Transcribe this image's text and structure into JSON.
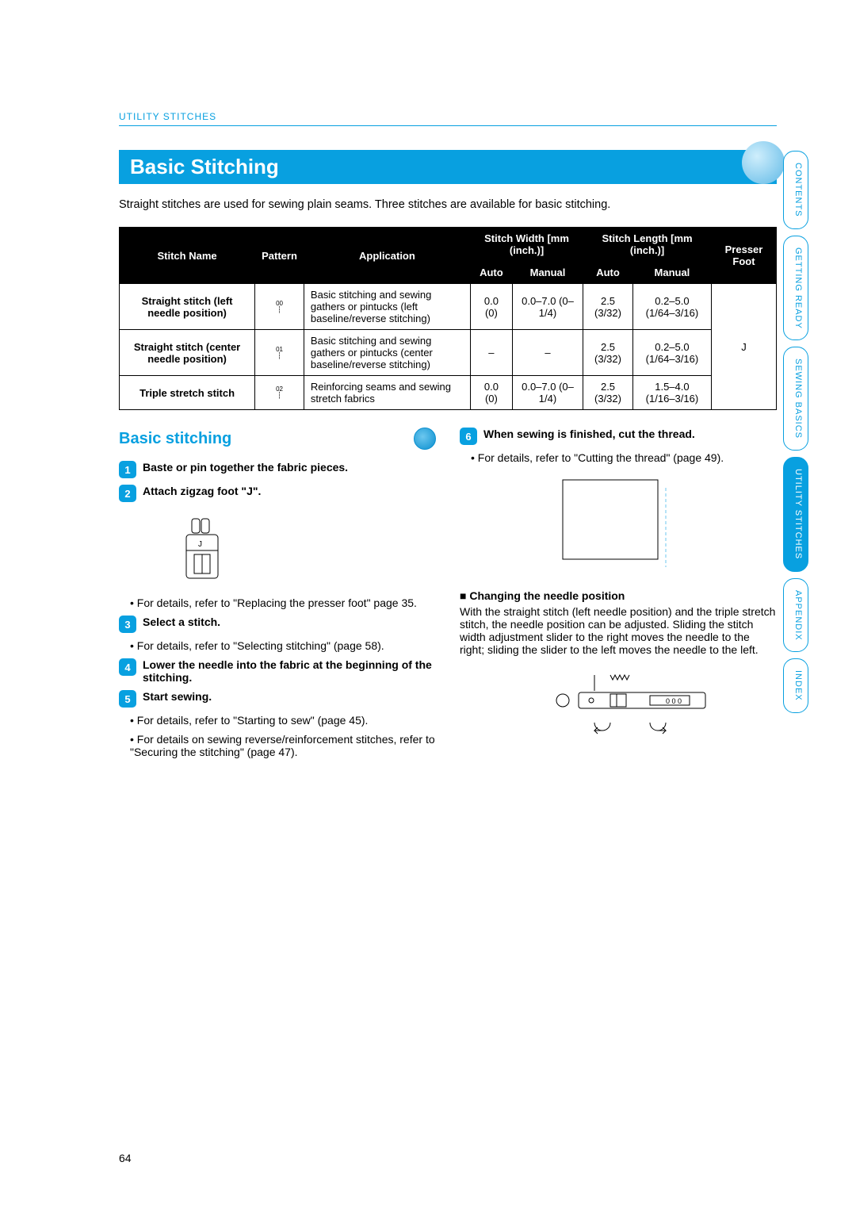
{
  "breadcrumb": "UTILITY STITCHES",
  "title": "Basic Stitching",
  "intro": "Straight stitches are used for sewing plain seams. Three stitches are available for basic stitching.",
  "page_number": "64",
  "table": {
    "headers": {
      "stitch_name": "Stitch Name",
      "pattern": "Pattern",
      "application": "Application",
      "stitch_width": "Stitch Width [mm (inch.)]",
      "stitch_length": "Stitch Length [mm (inch.)]",
      "presser_foot": "Presser Foot",
      "auto": "Auto",
      "manual": "Manual"
    },
    "rows": [
      {
        "name": "Straight stitch (left needle position)",
        "pattern": "00",
        "application": "Basic stitching and sewing gathers or pintucks (left baseline/reverse stitching)",
        "w_auto": "0.0 (0)",
        "w_manual": "0.0–7.0 (0–1/4)",
        "l_auto": "2.5 (3/32)",
        "l_manual": "0.2–5.0 (1/64–3/16)"
      },
      {
        "name": "Straight stitch (center needle position)",
        "pattern": "01",
        "application": "Basic stitching and sewing gathers or pintucks (center baseline/reverse stitching)",
        "w_auto": "–",
        "w_manual": "–",
        "l_auto": "2.5 (3/32)",
        "l_manual": "0.2–5.0 (1/64–3/16)"
      },
      {
        "name": "Triple stretch stitch",
        "pattern": "02",
        "application": "Reinforcing seams and sewing stretch fabrics",
        "w_auto": "0.0 (0)",
        "w_manual": "0.0–7.0 (0–1/4)",
        "l_auto": "2.5 (3/32)",
        "l_manual": "1.5–4.0 (1/16–3/16)"
      }
    ],
    "presser_foot_value": "J"
  },
  "subsection_title": "Basic stitching",
  "left_steps": [
    {
      "num": "1",
      "title": "Baste or pin together the fabric pieces.",
      "bullets": []
    },
    {
      "num": "2",
      "title": "Attach zigzag foot \"J\".",
      "bullets": [
        "For details, refer to \"Replacing the presser foot\" page 35."
      ]
    },
    {
      "num": "3",
      "title": "Select a stitch.",
      "bullets": [
        "For details, refer to \"Selecting stitching\" (page 58)."
      ]
    },
    {
      "num": "4",
      "title": "Lower the needle into the fabric at the beginning of the stitching.",
      "bullets": []
    },
    {
      "num": "5",
      "title": "Start sewing.",
      "bullets": [
        "For details, refer to \"Starting to sew\" (page 45).",
        "For details on sewing reverse/reinforcement stitches, refer to \"Securing the stitching\" (page 47)."
      ]
    }
  ],
  "right_step": {
    "num": "6",
    "title": "When sewing is finished, cut the thread.",
    "bullets": [
      "For details, refer to \"Cutting the thread\" (page 49)."
    ]
  },
  "needle_section": {
    "heading": "Changing the needle position",
    "text": "With the straight stitch (left needle position) and the triple stretch stitch, the needle position can be adjusted. Sliding the stitch width adjustment slider to the right moves the needle to the right; sliding the slider to the left moves the needle to the left."
  },
  "side_tabs": [
    {
      "label": "CONTENTS",
      "active": false
    },
    {
      "label": "GETTING READY",
      "active": false
    },
    {
      "label": "SEWING BASICS",
      "active": false
    },
    {
      "label": "UTILITY STITCHES",
      "active": true
    },
    {
      "label": "APPENDIX",
      "active": false
    },
    {
      "label": "INDEX",
      "active": false
    }
  ],
  "colors": {
    "accent": "#08a0e0"
  }
}
